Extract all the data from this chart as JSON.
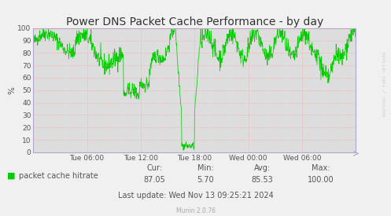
{
  "title": "Power DNS Packet Cache Performance - by day",
  "ylabel": "%",
  "ylim": [
    0,
    100
  ],
  "yticks": [
    0,
    10,
    20,
    30,
    40,
    50,
    60,
    70,
    80,
    90,
    100
  ],
  "xtick_labels": [
    "Tue 06:00",
    "Tue 12:00",
    "Tue 18:00",
    "Wed 00:00",
    "Wed 06:00"
  ],
  "xtick_positions": [
    0.1667,
    0.3333,
    0.5,
    0.6667,
    0.8333
  ],
  "legend_label": "packet cache hitrate",
  "legend_color": "#00cc00",
  "line_color": "#00cc00",
  "bg_color": "#f0f0f0",
  "plot_bg_color": "#dddddd",
  "grid_color": "#ff9999",
  "axis_color": "#aaaacc",
  "text_color": "#555555",
  "stats_label_color": "#555555",
  "cur": "87.05",
  "min": "5.70",
  "avg": "85.53",
  "max": "100.00",
  "last_update": "Last update: Wed Nov 13 09:25:21 2024",
  "munin_version": "Munin 2.0.76",
  "watermark": "RRDTOOL / TOBI OETIKER",
  "title_fontsize": 10,
  "label_fontsize": 7,
  "tick_fontsize": 6.5,
  "stats_fontsize": 7,
  "watermark_fontsize": 4.5
}
